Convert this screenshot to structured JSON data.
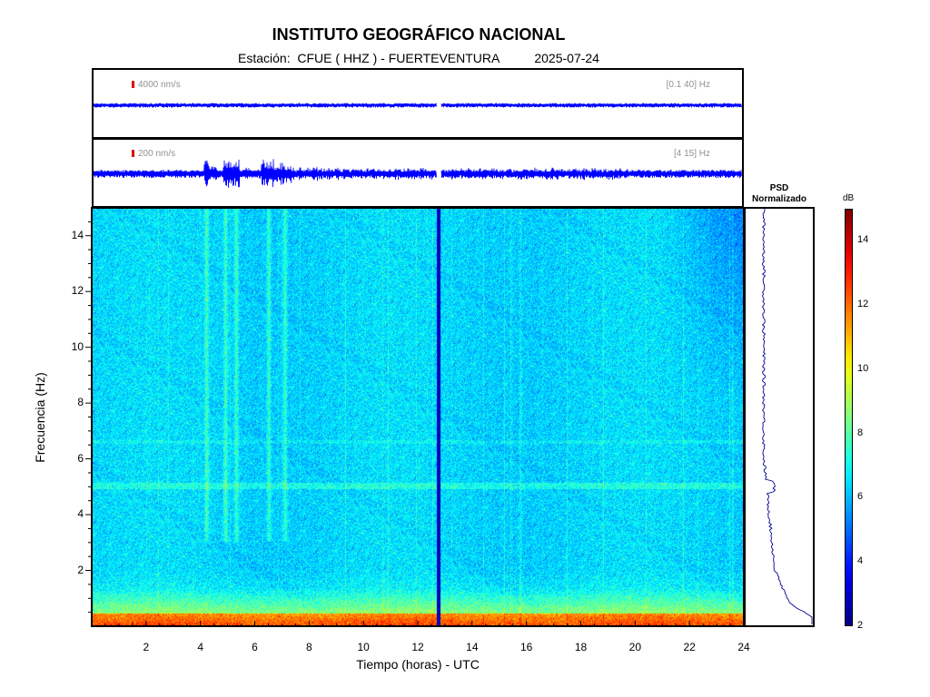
{
  "header": {
    "title": "INSTITUTO GEOGRÁFICO NACIONAL",
    "station_label": "Estación:",
    "station": "CFUE ( HHZ ) - FUERTEVENTURA",
    "date": "2025-07-24"
  },
  "traces": [
    {
      "scale_label": "4000 nm/s",
      "band_label": "[0.1 40] Hz"
    },
    {
      "scale_label": "200 nm/s",
      "band_label": "[4 15] Hz"
    }
  ],
  "colors": {
    "trace": "#0000ff",
    "scale_bar": "#e00000",
    "gap": "#00008f"
  },
  "chart_data": {
    "type": "heatmap",
    "xlabel": "Tiempo (horas) - UTC",
    "ylabel": "Frecuencia  (Hz)",
    "xlim": [
      0,
      24
    ],
    "ylim": [
      0,
      15
    ],
    "xticks": [
      2,
      4,
      6,
      8,
      10,
      12,
      14,
      16,
      18,
      20,
      22,
      24
    ],
    "yticks": [
      2,
      4,
      6,
      8,
      10,
      12,
      14
    ],
    "colormap": "jet",
    "colorbar": {
      "label": "dB",
      "range": [
        2,
        15
      ],
      "ticks": [
        2,
        4,
        6,
        8,
        10,
        12,
        14
      ]
    },
    "data_gap_hours": [
      12.7,
      12.85
    ],
    "events_hours": [
      4.2,
      4.9,
      5.3,
      6.5,
      7.1
    ],
    "psd_panel": {
      "title_line1": "PSD",
      "title_line2": "Normalizado"
    }
  }
}
